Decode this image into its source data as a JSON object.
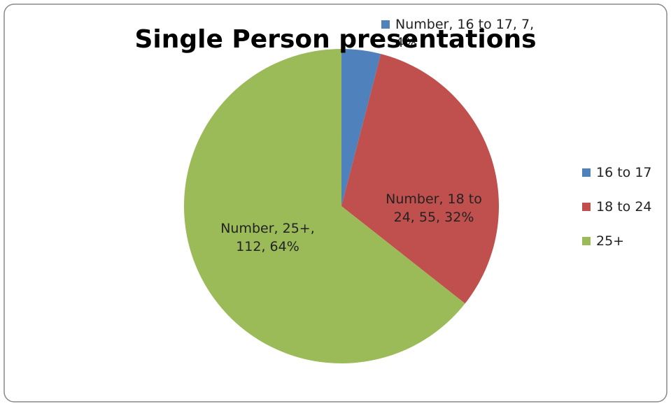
{
  "chart_data": {
    "type": "pie",
    "title": "Single Person presentations",
    "categories": [
      "16 to 17",
      "18 to 24",
      "25+"
    ],
    "values": [
      7,
      55,
      112
    ],
    "value_labels": [
      "Number, 16 to 17, 7, 4%",
      "Number, 18 to 24, 55, 32%",
      "Number, 25+, 112, 64%"
    ],
    "colors": [
      "#4f81bd",
      "#c0504d",
      "#9bbb59"
    ],
    "legend": "right"
  }
}
